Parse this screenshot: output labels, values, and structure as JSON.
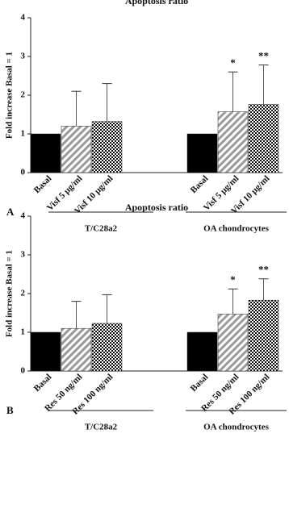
{
  "chart_data": [
    {
      "type": "bar",
      "panel": "A",
      "title": "Apoptosis ratio",
      "ylabel": "Fold increase Basal = 1",
      "ylim": [
        0,
        4
      ],
      "yticks": [
        0,
        1,
        2,
        3,
        4
      ],
      "groups": [
        {
          "name": "T/C28a2",
          "categories": [
            "Basal",
            "Visf 5 µg/ml",
            "Visf 10 µg/ml"
          ],
          "values": [
            1,
            1.2,
            1.32
          ],
          "errors": [
            null,
            0.9,
            0.98
          ],
          "annotations": [
            null,
            null,
            null
          ]
        },
        {
          "name": "OA chondrocytes",
          "categories": [
            "Basal",
            "Visf 5 µg/ml",
            "Visf 10 µg/ml"
          ],
          "values": [
            1,
            1.57,
            1.76
          ],
          "errors": [
            null,
            1.03,
            1.02
          ],
          "annotations": [
            null,
            "*",
            "**"
          ]
        }
      ]
    },
    {
      "type": "bar",
      "panel": "B",
      "title": "Apoptosis ratio",
      "ylabel": "Fold increase Basal = 1",
      "ylim": [
        0,
        4
      ],
      "yticks": [
        0,
        1,
        2,
        3,
        4
      ],
      "groups": [
        {
          "name": "T/C28a2",
          "categories": [
            "Basal",
            "Res 50 ng/ml",
            "Res 100 ng/ml"
          ],
          "values": [
            1,
            1.1,
            1.23
          ],
          "errors": [
            null,
            0.7,
            0.74
          ],
          "annotations": [
            null,
            null,
            null
          ]
        },
        {
          "name": "OA chondrocytes",
          "categories": [
            "Basal",
            "Res 50 ng/ml",
            "Res 100 ng/ml"
          ],
          "values": [
            1,
            1.47,
            1.83
          ],
          "errors": [
            null,
            0.65,
            0.55
          ],
          "annotations": [
            null,
            "*",
            "**"
          ]
        }
      ]
    }
  ]
}
